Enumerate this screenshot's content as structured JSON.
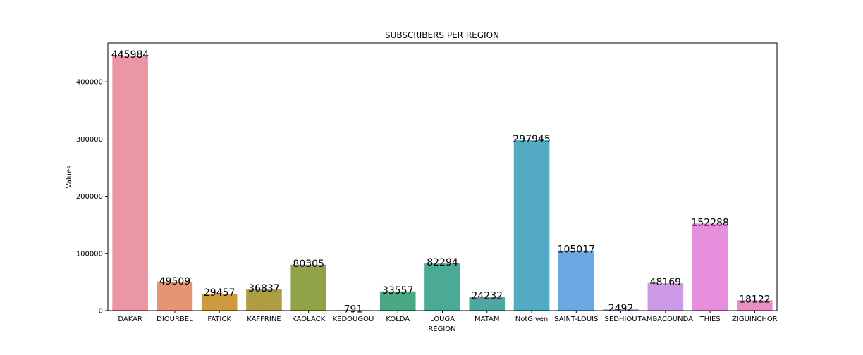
{
  "chart_data": {
    "type": "bar",
    "title": "SUBSCRIBERS PER REGION",
    "xlabel": "REGION",
    "ylabel": "Values",
    "ylim": [
      0,
      468000
    ],
    "yticks": [
      0,
      100000,
      200000,
      300000,
      400000
    ],
    "grid": false,
    "categories": [
      "DAKAR",
      "DIOURBEL",
      "FATICK",
      "KAFFRINE",
      "KAOLACK",
      "KEDOUGOU",
      "KOLDA",
      "LOUGA",
      "MATAM",
      "NotGiven",
      "SAINT-LOUIS",
      "SEDHIOU",
      "TAMBACOUNDA",
      "THIES",
      "ZIGUINCHOR"
    ],
    "values": [
      445984,
      49509,
      29457,
      36837,
      80305,
      791,
      33557,
      82294,
      24232,
      297945,
      105017,
      2492,
      48169,
      152288,
      18122
    ],
    "colors": [
      "#ea96a3",
      "#e59572",
      "#ce9a3f",
      "#af9d44",
      "#8fa446",
      "#4fa84a",
      "#4aa883",
      "#4aaa95",
      "#4da8a4",
      "#52aac3",
      "#6aa9e2",
      "#a2a7e6",
      "#cd9be6",
      "#e78fdc",
      "#e98fc1"
    ]
  }
}
